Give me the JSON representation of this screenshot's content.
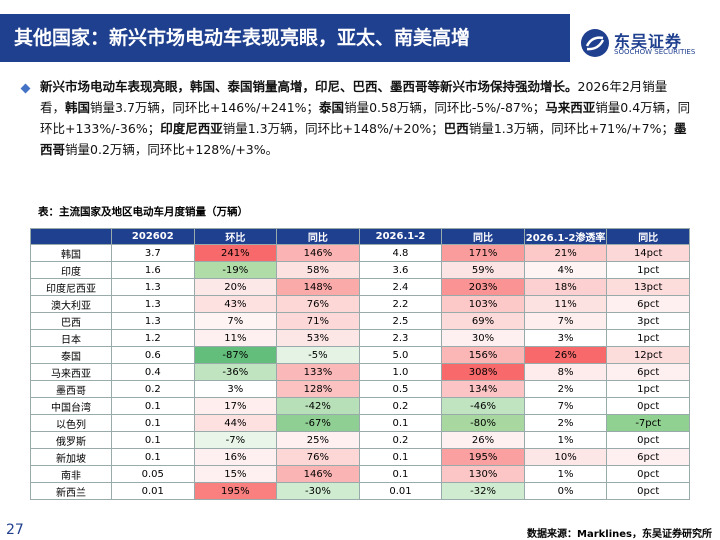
{
  "header": {
    "title": "其他国家：新兴市场电动车表现亮眼，亚太、南美高增",
    "logo_name": "东吴证券",
    "logo_sub": "SOOCHOW SECURITIES",
    "color": "#1f3f8f"
  },
  "bullet": [
    {
      "text": "新兴市场电动车表现亮眼，韩国、泰国销量高增，印尼、巴西、墨西哥等新兴市场保持强劲增长。",
      "bold": true
    },
    {
      "text": "2026年2月销量看，",
      "bold": false
    },
    {
      "text": "韩国",
      "bold": true
    },
    {
      "text": "销量3.7万辆，同环比+146%/+241%；",
      "bold": false
    },
    {
      "text": "泰国",
      "bold": true
    },
    {
      "text": "销量0.58万辆，同环比-5%/-87%；",
      "bold": false
    },
    {
      "text": "马来西亚",
      "bold": true
    },
    {
      "text": "销量0.4万辆，同环比+133%/-36%；",
      "bold": false
    },
    {
      "text": "印度尼西亚",
      "bold": true
    },
    {
      "text": "销量1.3万辆，同环比+148%/+20%；",
      "bold": false
    },
    {
      "text": "巴西",
      "bold": true
    },
    {
      "text": "销量1.3万辆，同环比+71%/+7%；",
      "bold": false
    },
    {
      "text": "墨西哥",
      "bold": true
    },
    {
      "text": "销量0.2万辆，同环比+128%/+3%。",
      "bold": false
    }
  ],
  "table": {
    "caption": "表：主流国家及地区电动车月度销量（万辆）",
    "header_color": "#1f3f8f",
    "columns": [
      "202602",
      "环比",
      "同比",
      "2026.1-2",
      "同比",
      "2026.1-2渗透率",
      "同比"
    ],
    "rows": [
      {
        "cells": [
          "韩国",
          "3.7",
          "241%",
          "146%",
          "4.8",
          "171%",
          "21%",
          "14pct"
        ],
        "fills": [
          null,
          null,
          "#f8696b",
          "#fbb3b3",
          null,
          "#fa9c9c",
          "#fcc8c8",
          "#fdd8d8"
        ]
      },
      {
        "cells": [
          "印度",
          "1.6",
          "-19%",
          "58%",
          "3.6",
          "59%",
          "4%",
          "1pct"
        ],
        "fills": [
          null,
          null,
          "#b0dca8",
          "#fde2e2",
          null,
          "#fde4e4",
          "#fff4f4",
          null
        ]
      },
      {
        "cells": [
          "印度尼西亚",
          "1.3",
          "20%",
          "148%",
          "2.4",
          "203%",
          "18%",
          "13pct"
        ],
        "fills": [
          null,
          null,
          "#fde8e8",
          "#fbaaaa",
          null,
          "#fa9494",
          "#fcd0d0",
          "#fddcdc"
        ]
      },
      {
        "cells": [
          "澳大利亚",
          "1.3",
          "43%",
          "76%",
          "2.2",
          "103%",
          "11%",
          "6pct"
        ],
        "fills": [
          null,
          null,
          "#fde0e0",
          "#fdd6d6",
          null,
          "#fcc8c8",
          "#fde2e2",
          "#fef0f0"
        ]
      },
      {
        "cells": [
          "巴西",
          "1.3",
          "7%",
          "71%",
          "2.5",
          "69%",
          "7%",
          "3pct"
        ],
        "fills": [
          null,
          null,
          "#fef4f4",
          "#fdd8d8",
          null,
          "#fddada",
          "#feeeee",
          null
        ]
      },
      {
        "cells": [
          "日本",
          "1.2",
          "11%",
          "53%",
          "2.3",
          "30%",
          "3%",
          "1pct"
        ],
        "fills": [
          null,
          null,
          "#fef0f0",
          "#fde6e6",
          null,
          "#fef0f0",
          null,
          null
        ]
      },
      {
        "cells": [
          "泰国",
          "0.6",
          "-87%",
          "-5%",
          "5.0",
          "156%",
          "26%",
          "12pct"
        ],
        "fills": [
          null,
          null,
          "#63be7b",
          "#e4f3e4",
          null,
          "#fbb6b6",
          "#f8696b",
          "#fddcdc"
        ]
      },
      {
        "cells": [
          "马来西亚",
          "0.4",
          "-36%",
          "133%",
          "1.0",
          "308%",
          "8%",
          "6pct"
        ],
        "fills": [
          null,
          null,
          "#c0e4c0",
          "#fbb8b8",
          null,
          "#f8696b",
          "#feecec",
          "#fef0f0"
        ]
      },
      {
        "cells": [
          "墨西哥",
          "0.2",
          "3%",
          "128%",
          "0.5",
          "134%",
          "2%",
          "1pct"
        ],
        "fills": [
          null,
          null,
          null,
          "#fcc2c2",
          null,
          "#fcc4c4",
          null,
          null
        ]
      },
      {
        "cells": [
          "中国台湾",
          "0.1",
          "17%",
          "-42%",
          "0.2",
          "-46%",
          "7%",
          "0pct"
        ],
        "fills": [
          null,
          null,
          "#feeeee",
          "#b8e0b8",
          null,
          "#c0e4c0",
          null,
          null
        ]
      },
      {
        "cells": [
          "以色列",
          "0.1",
          "44%",
          "-67%",
          "0.1",
          "-80%",
          "2%",
          "-7pct"
        ],
        "fills": [
          null,
          null,
          "#fde0e0",
          "#8fcf94",
          null,
          "#a8d8a0",
          null,
          "#90d090"
        ]
      },
      {
        "cells": [
          "俄罗斯",
          "0.1",
          "-7%",
          "25%",
          "0.2",
          "26%",
          "1%",
          "0pct"
        ],
        "fills": [
          null,
          null,
          "#e8f5e8",
          "#fef0f0",
          null,
          "#fef0f0",
          null,
          null
        ]
      },
      {
        "cells": [
          "新加坡",
          "0.1",
          "16%",
          "76%",
          "0.1",
          "195%",
          "10%",
          "6pct"
        ],
        "fills": [
          null,
          null,
          "#fef0f0",
          "#fdd6d6",
          null,
          "#faa0a0",
          "#fde6e6",
          "#fef0f0"
        ]
      },
      {
        "cells": [
          "南非",
          "0.05",
          "15%",
          "146%",
          "0.1",
          "130%",
          "1%",
          "0pct"
        ],
        "fills": [
          null,
          null,
          "#fef0f0",
          "#fbb4b4",
          null,
          "#fcc6c6",
          null,
          null
        ]
      },
      {
        "cells": [
          "新西兰",
          "0.01",
          "195%",
          "-30%",
          "0.01",
          "-32%",
          "0%",
          "0pct"
        ],
        "fills": [
          null,
          null,
          "#fa8080",
          "#d0ecd0",
          null,
          "#d0ecd0",
          null,
          null
        ]
      }
    ]
  },
  "footer": {
    "page": "27",
    "source": "数据来源：Marklines，东吴证券研究所"
  }
}
